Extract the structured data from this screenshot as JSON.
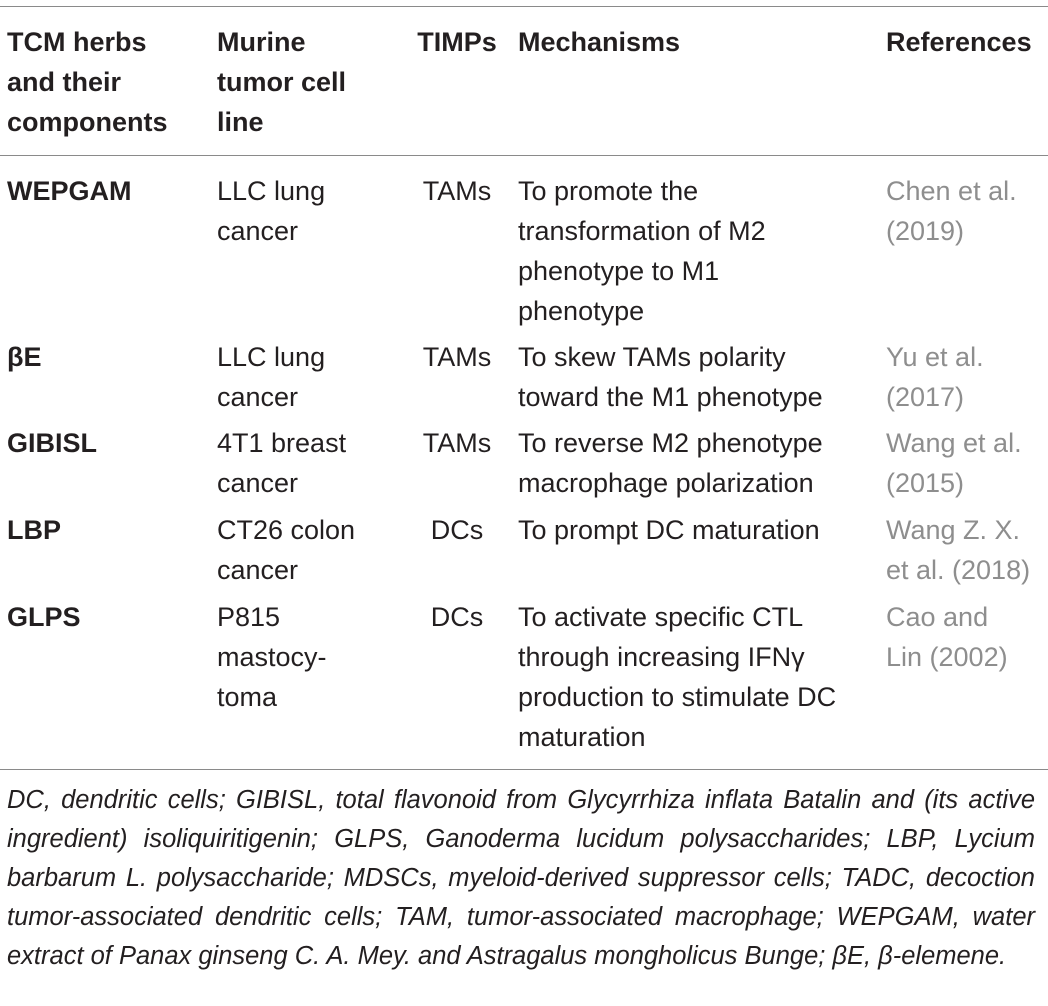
{
  "headers": {
    "herbs": "TCM herbs\nand their\ncomponents",
    "cell_line": "Murine\ntumor cell\nline",
    "timps": "TIMPs",
    "mechanisms": "Mechanisms",
    "references": "References"
  },
  "rows": [
    {
      "herb": "WEPGAM",
      "cell_line": "LLC lung\ncancer",
      "timps": "TAMs",
      "mechanism": "To promote the\ntransformation of M2\nphenotype to M1\nphenotype",
      "reference": "Chen et al.\n(2019)"
    },
    {
      "herb": "βE",
      "cell_line": "LLC lung\ncancer",
      "timps": "TAMs",
      "mechanism": "To skew TAMs polarity\ntoward the M1 phenotype",
      "reference": "Yu et al.\n(2017)"
    },
    {
      "herb": "GIBISL",
      "cell_line": "4T1 breast\ncancer",
      "timps": "TAMs",
      "mechanism": "To reverse M2 phenotype\nmacrophage polarization",
      "reference": "Wang et al.\n(2015)"
    },
    {
      "herb": "LBP",
      "cell_line": "CT26 colon\ncancer",
      "timps": "DCs",
      "mechanism": "To prompt DC maturation",
      "reference": "Wang Z. X.\net al. (2018)"
    },
    {
      "herb": "GLPS",
      "cell_line": "P815\nmastocy-\ntoma",
      "timps": "DCs",
      "mechanism": "To activate specific CTL\nthrough increasing IFNγ\nproduction to stimulate DC\nmaturation",
      "reference": "Cao and\nLin (2002)"
    }
  ],
  "footnote": "DC, dendritic cells; GIBISL, total flavonoid from Glycyrrhiza inflata Batalin and (its active ingredient) isoliquiritigenin; GLPS, Ganoderma lucidum polysaccharides; LBP, Lycium barbarum L. polysaccharide; MDSCs, myeloid-derived suppressor cells; TADC, decoction tumor-associated dendritic cells; TAM, tumor-associated macrophage; WEPGAM, water extract of Panax ginseng C. A. Mey. and Astragalus mongholicus Bunge; βE, β-elemene."
}
